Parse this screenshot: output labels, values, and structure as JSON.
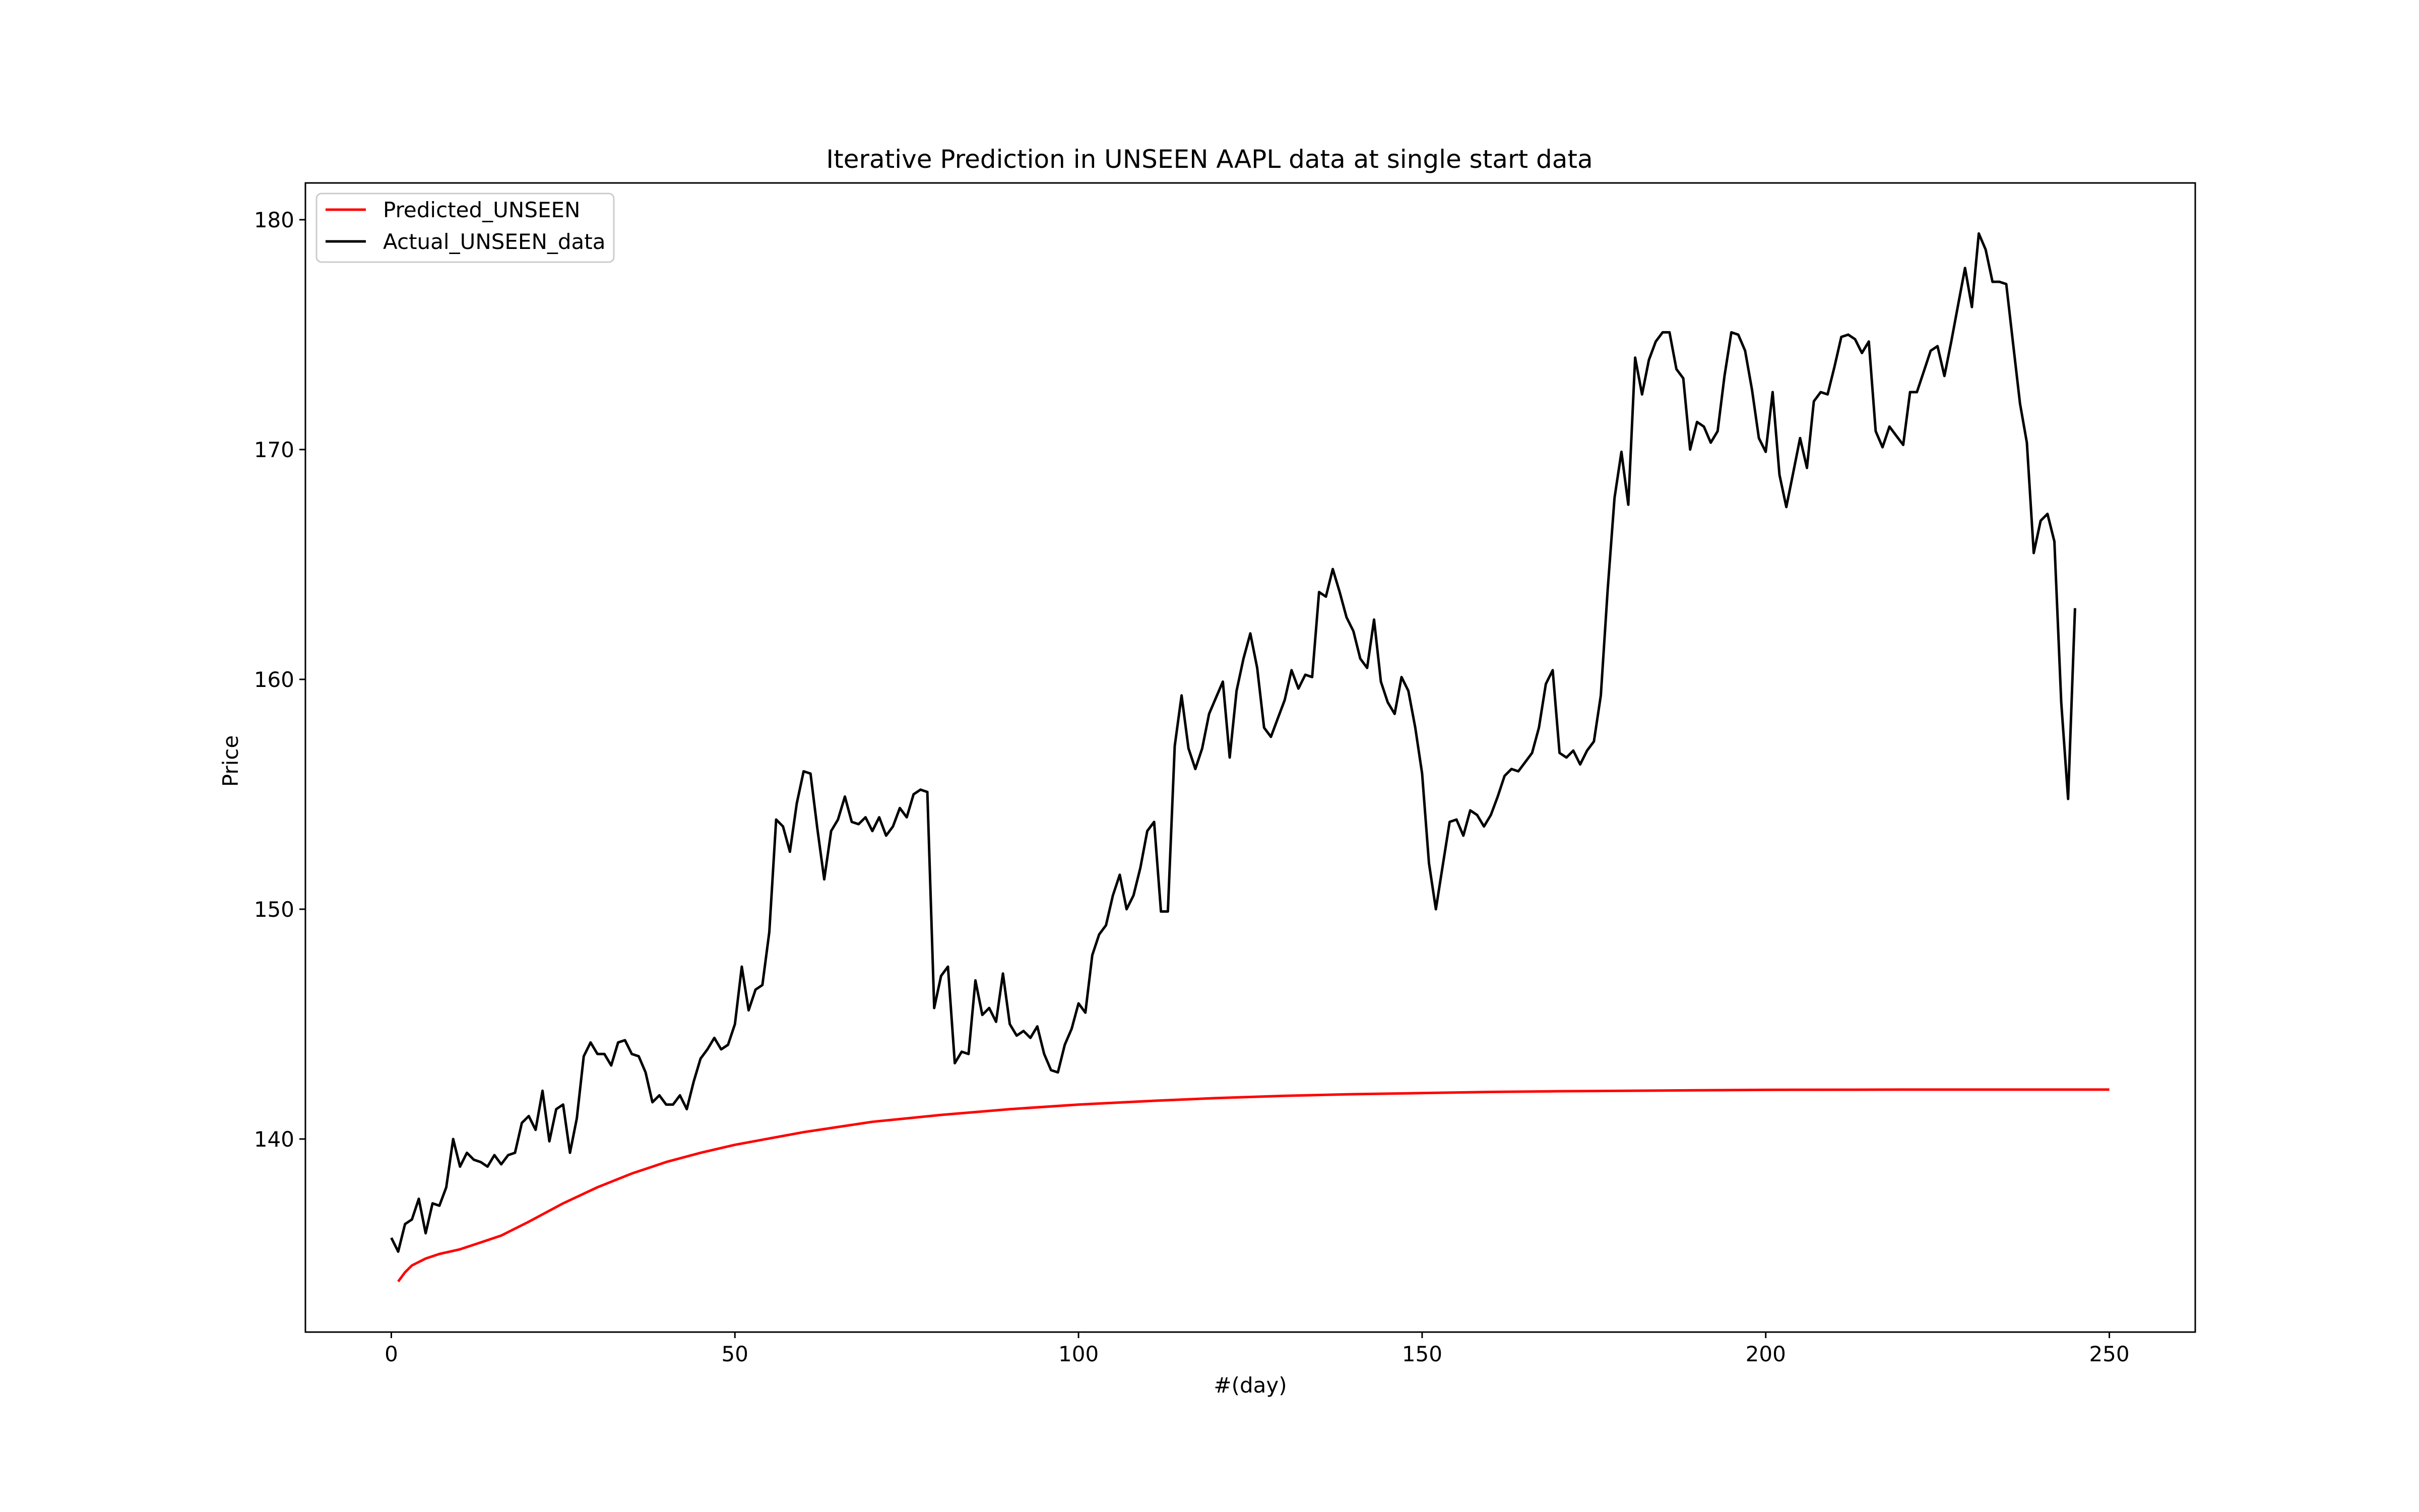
{
  "chart_data": {
    "type": "line",
    "title": "Iterative Prediction in UNSEEN AAPL data at single start data",
    "xlabel": "#(day)",
    "ylabel": "Price",
    "xlim": [
      -12.5,
      262.5
    ],
    "ylim": [
      131.6,
      181.6
    ],
    "xticks": [
      0,
      50,
      100,
      150,
      200,
      250
    ],
    "yticks": [
      140,
      150,
      160,
      170,
      180
    ],
    "grid": false,
    "legend_position": "top-left",
    "series": [
      {
        "name": "Predicted_UNSEEN",
        "color": "#ff0000",
        "x": [
          1,
          2,
          3,
          5,
          7,
          10,
          13,
          16,
          20,
          25,
          30,
          35,
          40,
          45,
          50,
          60,
          70,
          80,
          90,
          100,
          110,
          120,
          130,
          140,
          150,
          160,
          170,
          180,
          190,
          200,
          220,
          250
        ],
        "y": [
          133.8,
          134.2,
          134.5,
          134.8,
          135.0,
          135.2,
          135.5,
          135.8,
          136.4,
          137.2,
          137.9,
          138.5,
          139.0,
          139.4,
          139.75,
          140.3,
          140.75,
          141.05,
          141.3,
          141.5,
          141.65,
          141.78,
          141.88,
          141.95,
          142.0,
          142.05,
          142.08,
          142.1,
          142.12,
          142.14,
          142.15,
          142.15
        ]
      },
      {
        "name": "Actual_UNSEEN_data",
        "color": "#000000",
        "x": [
          0,
          1,
          2,
          3,
          4,
          5,
          6,
          7,
          8,
          9,
          10,
          11,
          12,
          13,
          14,
          15,
          16,
          17,
          18,
          19,
          20,
          21,
          22,
          23,
          24,
          25,
          26,
          27,
          28,
          29,
          30,
          31,
          32,
          33,
          34,
          35,
          36,
          37,
          38,
          39,
          40,
          41,
          42,
          43,
          44,
          45,
          46,
          47,
          48,
          49,
          50,
          51,
          52,
          53,
          54,
          55,
          56,
          57,
          58,
          59,
          60,
          61,
          62,
          63,
          64,
          65,
          66,
          67,
          68,
          69,
          70,
          71,
          72,
          73,
          74,
          75,
          76,
          77,
          78,
          79,
          80,
          81,
          82,
          83,
          84,
          85,
          86,
          87,
          88,
          89,
          90,
          91,
          92,
          93,
          94,
          95,
          96,
          97,
          98,
          99,
          100,
          101,
          102,
          103,
          104,
          105,
          106,
          107,
          108,
          109,
          110,
          111,
          112,
          113,
          114,
          115,
          116,
          117,
          118,
          119,
          120,
          121,
          122,
          123,
          124,
          125,
          126,
          127,
          128,
          129,
          130,
          131,
          132,
          133,
          134,
          135,
          136,
          137,
          138,
          139,
          140,
          141,
          142,
          143,
          144,
          145,
          146,
          147,
          148,
          149,
          150,
          151,
          152,
          153,
          154,
          155,
          156,
          157,
          158,
          159,
          160,
          161,
          162,
          163,
          164,
          165,
          166,
          167,
          168,
          169,
          170,
          171,
          172,
          173,
          174,
          175,
          176,
          177,
          178,
          179,
          180,
          181,
          182,
          183,
          184,
          185,
          186,
          187,
          188,
          189,
          190,
          191,
          192,
          193,
          194,
          195,
          196,
          197,
          198,
          199,
          200,
          201,
          202,
          203,
          204,
          205,
          206,
          207,
          208,
          209,
          210,
          211,
          212,
          213,
          214,
          215,
          216,
          217,
          218,
          219,
          220,
          221,
          222,
          223,
          224,
          225,
          226,
          227,
          228,
          229,
          230,
          231,
          232,
          233,
          234,
          235,
          236,
          237,
          238,
          239,
          240,
          241,
          242,
          243,
          244,
          245
        ],
        "y": [
          135.7,
          135.1,
          136.3,
          136.5,
          137.4,
          135.9,
          137.2,
          137.1,
          137.9,
          140.0,
          138.8,
          139.4,
          139.1,
          139.0,
          138.8,
          139.3,
          138.9,
          139.3,
          139.4,
          140.7,
          141.0,
          140.4,
          142.1,
          139.9,
          141.3,
          141.5,
          139.4,
          140.9,
          143.6,
          144.2,
          143.7,
          143.7,
          143.2,
          144.2,
          144.3,
          143.7,
          143.6,
          142.9,
          141.6,
          141.9,
          141.5,
          141.5,
          141.9,
          141.3,
          142.5,
          143.5,
          143.9,
          144.4,
          143.9,
          144.1,
          145.0,
          147.5,
          145.6,
          146.5,
          146.7,
          149.0,
          153.9,
          153.6,
          152.5,
          154.6,
          156.0,
          155.9,
          153.5,
          151.3,
          153.4,
          153.9,
          154.9,
          153.8,
          153.7,
          154.0,
          153.4,
          154.0,
          153.2,
          153.6,
          154.4,
          154.0,
          155.0,
          155.2,
          155.1,
          145.7,
          147.1,
          147.5,
          143.3,
          143.8,
          143.7,
          146.9,
          145.4,
          145.7,
          145.1,
          147.2,
          145.0,
          144.5,
          144.7,
          144.4,
          144.9,
          143.7,
          143.0,
          142.9,
          144.1,
          144.8,
          145.9,
          145.5,
          148.0,
          148.9,
          149.3,
          150.6,
          151.5,
          150.0,
          150.6,
          151.8,
          153.4,
          153.8,
          149.9,
          149.9,
          157.1,
          159.3,
          157.0,
          156.1,
          157.0,
          158.5,
          159.2,
          159.9,
          156.6,
          159.5,
          160.9,
          162.0,
          160.5,
          157.9,
          157.5,
          158.3,
          159.1,
          160.4,
          159.6,
          160.2,
          160.1,
          163.8,
          163.6,
          164.8,
          163.8,
          162.7,
          162.1,
          160.9,
          160.5,
          162.6,
          159.9,
          159.0,
          158.5,
          160.1,
          159.5,
          157.9,
          155.9,
          152.0,
          150.0,
          151.9,
          153.8,
          153.9,
          153.2,
          154.3,
          154.1,
          153.6,
          154.1,
          154.9,
          155.8,
          156.1,
          156.0,
          156.4,
          156.8,
          157.9,
          159.8,
          160.4,
          156.8,
          156.6,
          156.9,
          156.3,
          156.9,
          157.3,
          159.3,
          163.9,
          167.9,
          169.9,
          167.6,
          174.0,
          172.4,
          173.9,
          174.7,
          175.1,
          175.1,
          173.5,
          173.1,
          170.0,
          171.2,
          171.0,
          170.3,
          170.8,
          173.2,
          175.1,
          175.0,
          174.3,
          172.6,
          170.5,
          169.9,
          172.5,
          168.9,
          167.5,
          169.0,
          170.5,
          169.2,
          172.1,
          172.5,
          172.4,
          173.6,
          174.9,
          175.0,
          174.8,
          174.2,
          174.7,
          170.8,
          170.1,
          171.0,
          170.6,
          170.2,
          172.5,
          172.5,
          173.4,
          174.3,
          174.5,
          173.2,
          174.7,
          176.3,
          177.9,
          176.2,
          179.4,
          178.7,
          177.3,
          177.3,
          177.2,
          174.6,
          172.0,
          170.3,
          165.5,
          166.9,
          167.2,
          166.0,
          159.0,
          154.8,
          163.1
        ]
      }
    ]
  }
}
